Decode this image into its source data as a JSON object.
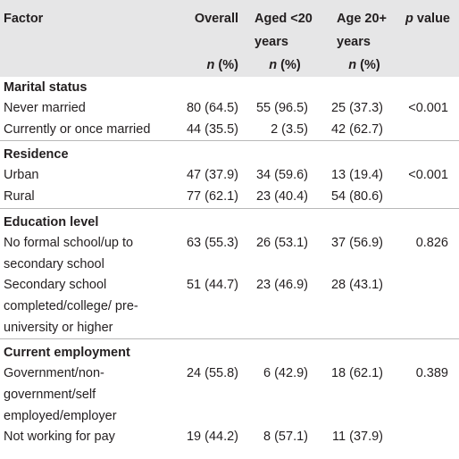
{
  "table": {
    "header": {
      "factor": "Factor",
      "overall": "Overall",
      "under20": "Aged <20 years",
      "over20": "Age 20+ years",
      "p": "p value",
      "sub": "n (%)"
    },
    "sections": [
      {
        "title": "Marital status",
        "rows": [
          {
            "label": "Never married",
            "overall": "80 (64.5)",
            "under20": "55 (96.5)",
            "over20": "25 (37.3)",
            "p": "<0.001"
          },
          {
            "label": "Currently or once married",
            "overall": "44 (35.5)",
            "under20": "2 (3.5)",
            "over20": "42 (62.7)"
          }
        ]
      },
      {
        "title": "Residence",
        "rows": [
          {
            "label": "Urban",
            "overall": "47 (37.9)",
            "under20": "34 (59.6)",
            "over20": "13 (19.4)",
            "p": "<0.001"
          },
          {
            "label": "Rural",
            "overall": "77 (62.1)",
            "under20": "23 (40.4)",
            "over20": "54 (80.6)"
          }
        ]
      },
      {
        "title": "Education level",
        "rows": [
          {
            "label": "No formal school/up to secondary school",
            "overall": "63 (55.3)",
            "under20": "26 (53.1)",
            "over20": "37 (56.9)",
            "p": "0.826"
          },
          {
            "label": "Secondary school completed/college/ pre-university or higher",
            "overall": "51 (44.7)",
            "under20": "23 (46.9)",
            "over20": "28 (43.1)"
          }
        ]
      },
      {
        "title": "Current employment",
        "rows": [
          {
            "label": "Government/non-government/self employed/employer",
            "overall": "24 (55.8)",
            "under20": "6 (42.9)",
            "over20": "18 (62.1)",
            "p": "0.389"
          },
          {
            "label": "Not working for pay",
            "overall": "19 (44.2)",
            "under20": "8 (57.1)",
            "over20": "11 (37.9)"
          }
        ]
      }
    ]
  }
}
